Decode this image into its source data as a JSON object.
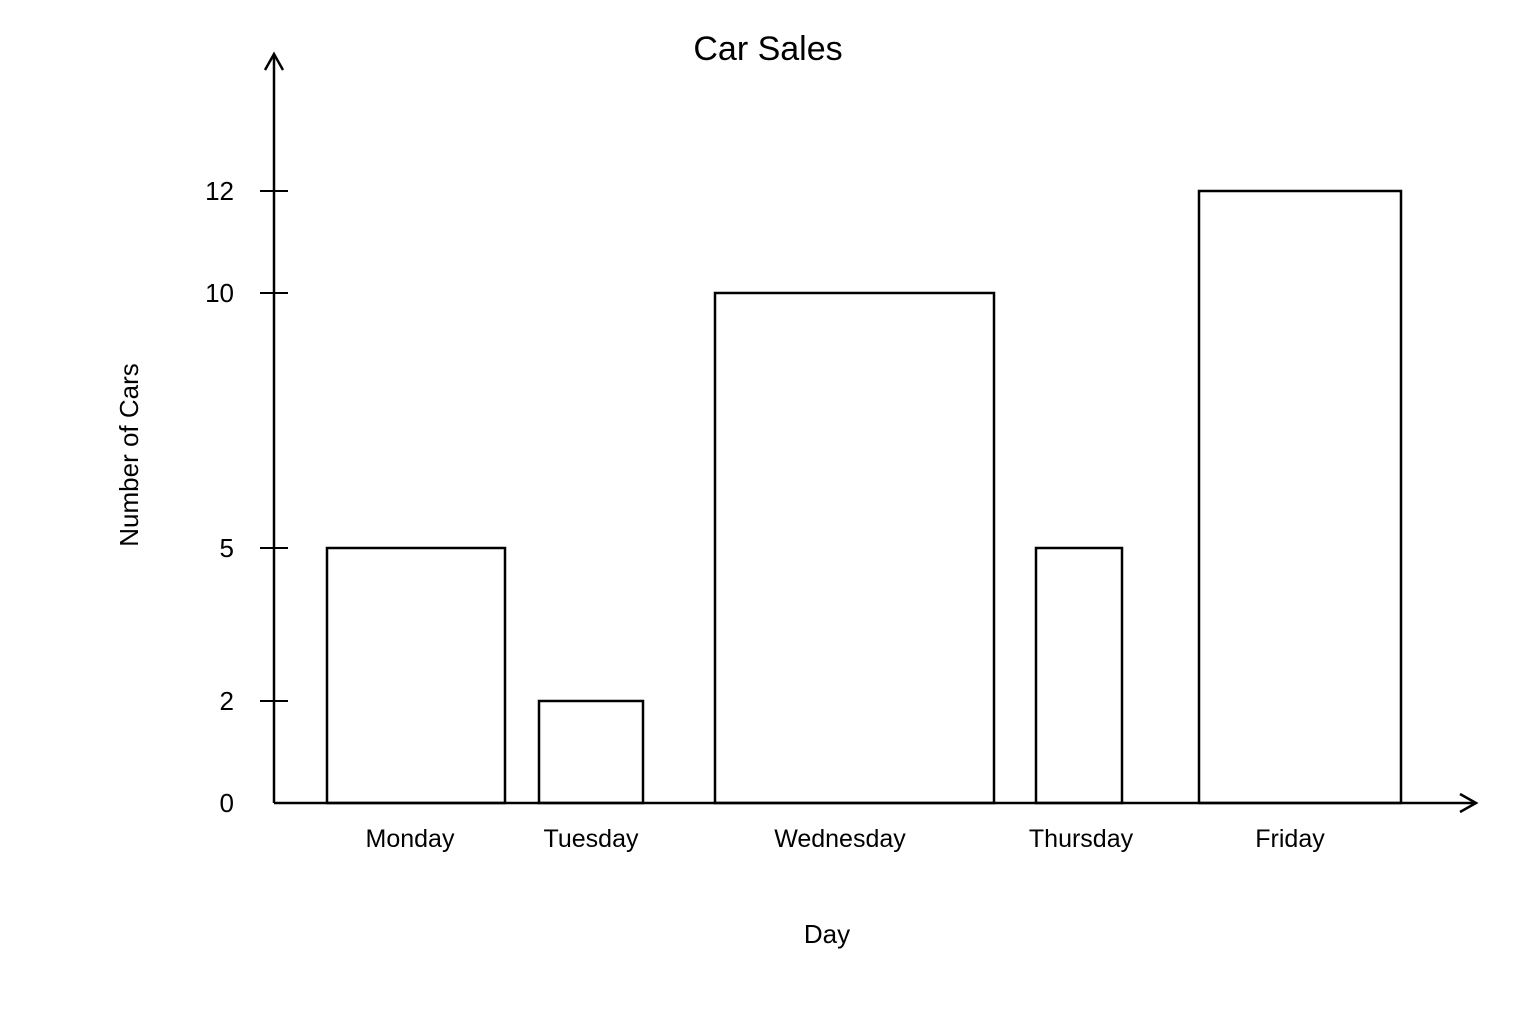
{
  "chart_data": {
    "type": "bar",
    "title": "Car Sales",
    "xlabel": "Day",
    "ylabel": "Number of Cars",
    "categories": [
      "Monday",
      "Tuesday",
      "Wednesday",
      "Thursday",
      "Friday"
    ],
    "values": [
      5,
      2,
      10,
      5,
      12
    ],
    "yticks": [
      0,
      2,
      5,
      10,
      12
    ],
    "ylim": [
      0,
      14.5
    ],
    "grid": false,
    "legend": "none",
    "bar_fill": "#ffffff",
    "bar_stroke": "#000000"
  }
}
